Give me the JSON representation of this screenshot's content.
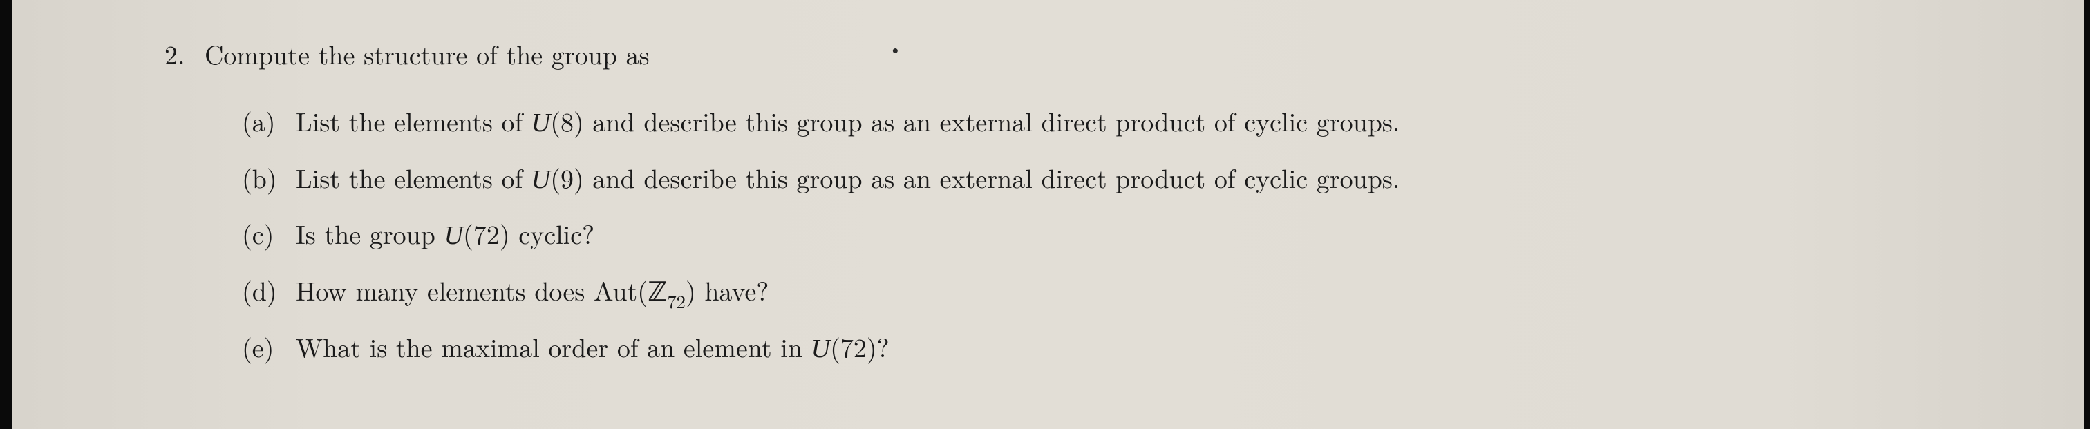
{
  "page": {
    "background_color": "#dedad2",
    "text_color": "#1a1a1a",
    "body_fontsize": 38
  },
  "problem": {
    "number": "2.",
    "intro": "Compute the structure of the group as",
    "items": [
      {
        "label": "(a)",
        "pre": "List the elements of ",
        "math": "U(8)",
        "post": " and describe this group as an external direct product of cyclic groups."
      },
      {
        "label": "(b)",
        "pre": "List the elements of ",
        "math": "U(9)",
        "post": " and describe this group as an external direct product of cyclic groups."
      },
      {
        "label": "(c)",
        "pre": "Is the group ",
        "math": "U(72)",
        "post": " cyclic?"
      },
      {
        "label": "(d)",
        "pre": "How many elements does Aut(",
        "math_sym": "ℤ",
        "math_sub": "72",
        "post2": ") have?"
      },
      {
        "label": "(e)",
        "pre": "What is the maximal order of an element in ",
        "math": "U(72)",
        "post": "?"
      }
    ]
  }
}
